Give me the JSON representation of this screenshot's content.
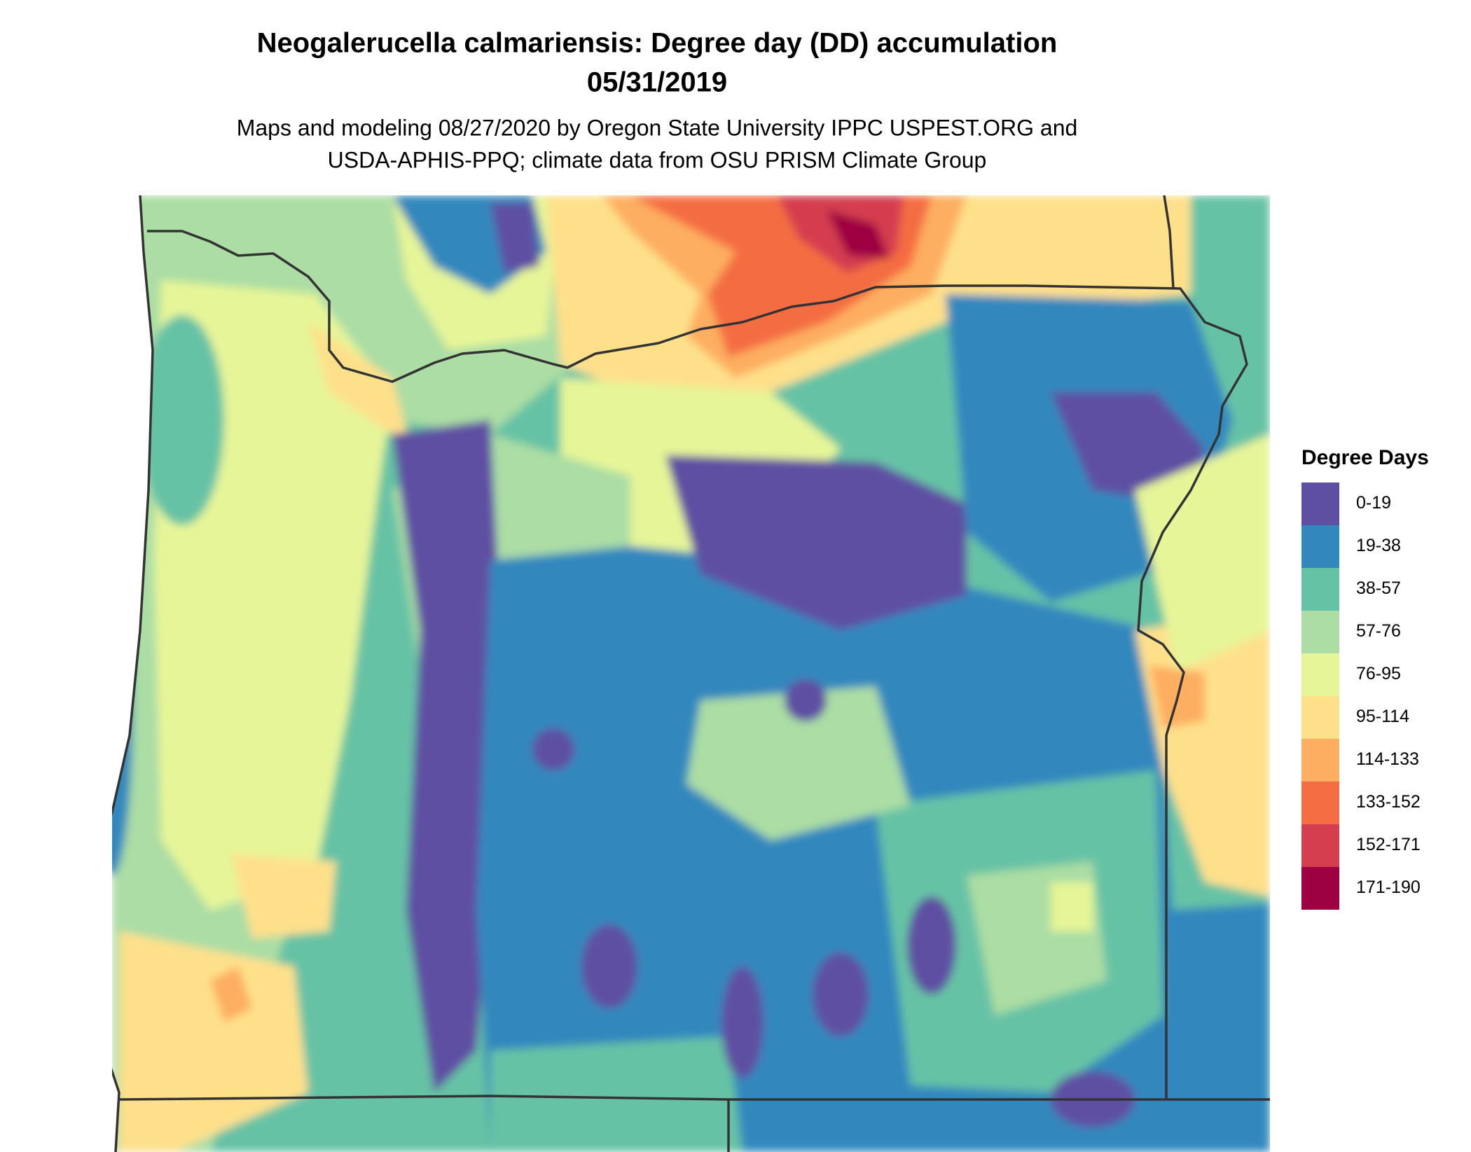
{
  "title": [
    "Neogalerucella calmariensis: Degree day (DD) accumulation",
    "05/31/2019"
  ],
  "subtitle": [
    "Maps and modeling 08/27/2020 by Oregon State University IPPC USPEST.ORG and",
    "USDA-APHIS-PPQ; climate data from OSU PRISM Climate Group"
  ],
  "legend": {
    "title": "Degree Days",
    "items": [
      {
        "label": "0-19",
        "color": "#5e4fa2"
      },
      {
        "label": "19-38",
        "color": "#3288bd"
      },
      {
        "label": "38-57",
        "color": "#66c2a5"
      },
      {
        "label": "57-76",
        "color": "#abdda4"
      },
      {
        "label": "76-95",
        "color": "#e6f598"
      },
      {
        "label": "95-114",
        "color": "#fee08b"
      },
      {
        "label": "114-133",
        "color": "#fdae61"
      },
      {
        "label": "133-152",
        "color": "#f46d43"
      },
      {
        "label": "152-171",
        "color": "#d53e4f"
      },
      {
        "label": "171-190",
        "color": "#9e0142"
      }
    ]
  }
}
